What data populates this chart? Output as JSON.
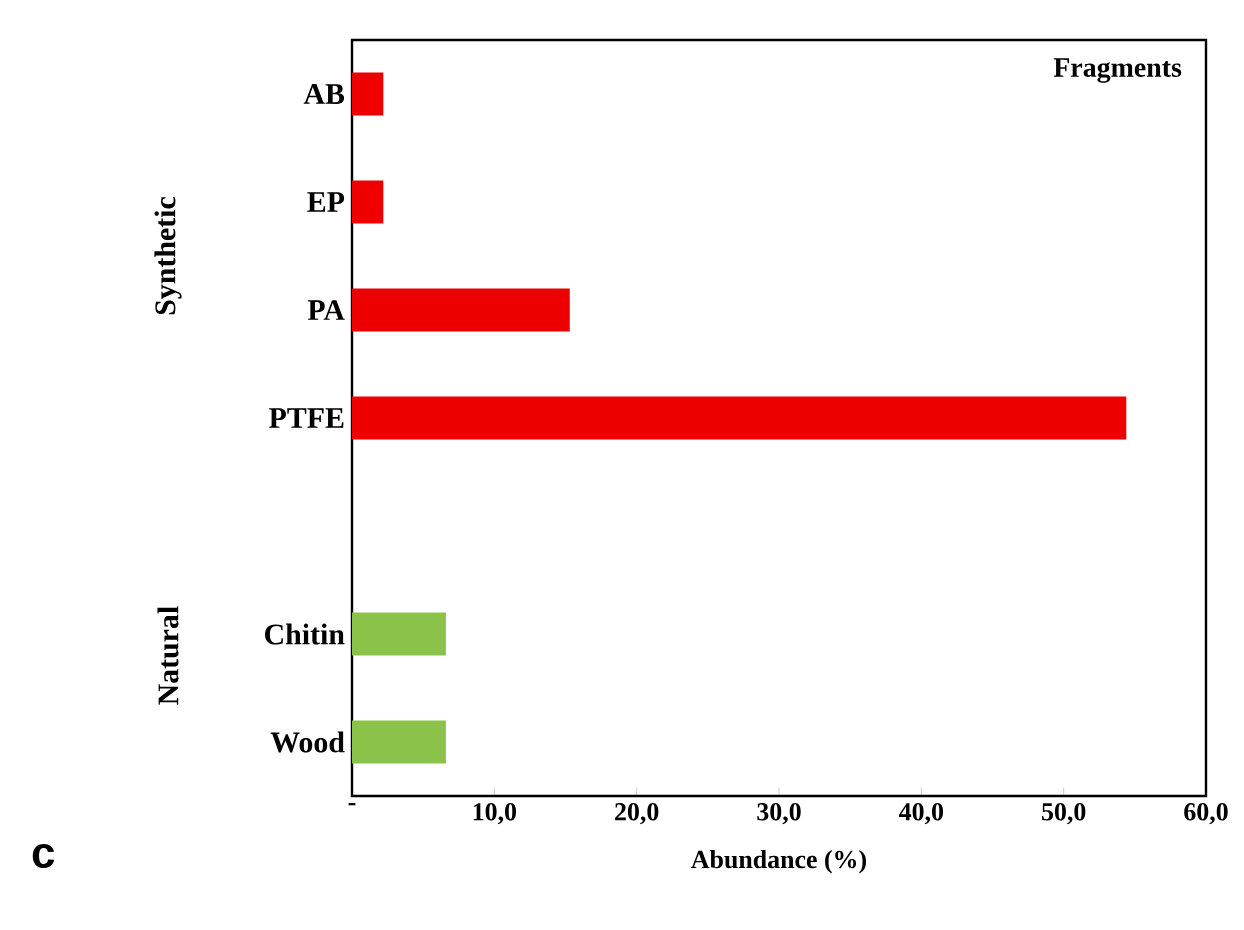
{
  "chart_data": {
    "type": "bar",
    "orientation": "horizontal",
    "categories": [
      "AB",
      "EP",
      "PA",
      "PTFE",
      null,
      "Chitin",
      "Wood"
    ],
    "values": [
      2.2,
      2.2,
      15.3,
      54.4,
      null,
      6.6,
      6.6
    ],
    "colors": [
      "#ee0000",
      "#ee0000",
      "#ee0000",
      "#ee0000",
      "#ee0000",
      "#8bc34a",
      "#8bc34a"
    ],
    "xlabel": "Abundance (%)",
    "xlim": [
      0,
      60
    ],
    "xticks": [
      {
        "value": 0,
        "label": "-"
      },
      {
        "value": 10,
        "label": "10,0"
      },
      {
        "value": 20,
        "label": "20,0"
      },
      {
        "value": 30,
        "label": "30,0"
      },
      {
        "value": 40,
        "label": "40,0"
      },
      {
        "value": 50,
        "label": "50,0"
      },
      {
        "value": 60,
        "label": "60,0"
      }
    ],
    "annotations": [
      "Fragments",
      "Synthetic",
      "Natural",
      "c"
    ],
    "grid": false
  }
}
